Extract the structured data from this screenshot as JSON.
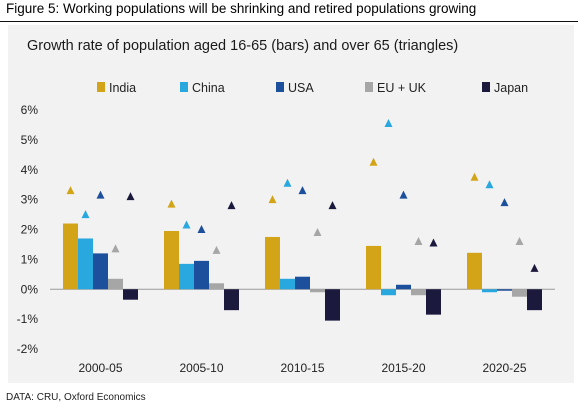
{
  "figure_title": "Figure 5: Working populations will be shrinking and retired populations growing",
  "source_note": "DATA: CRU, Oxford Economics",
  "chart_data": {
    "type": "bar",
    "title": "Growth rate of population aged 16-65 (bars) and over 65 (triangles)",
    "categories": [
      "2000-05",
      "2005-10",
      "2010-15",
      "2015-20",
      "2020-25"
    ],
    "ylim": [
      -2,
      6
    ],
    "yticks": [
      -2,
      -1,
      0,
      1,
      2,
      3,
      4,
      5,
      6
    ],
    "ytick_labels": [
      "-2%",
      "-1%",
      "0%",
      "1%",
      "2%",
      "3%",
      "4%",
      "5%",
      "6%"
    ],
    "legend_position": "top",
    "grid": false,
    "series": [
      {
        "name": "India",
        "color": "#d4a418",
        "bars": [
          2.2,
          1.95,
          1.75,
          1.45,
          1.22
        ],
        "triangles": [
          3.3,
          2.85,
          3.0,
          4.25,
          3.75
        ]
      },
      {
        "name": "China",
        "color": "#29a8e0",
        "bars": [
          1.7,
          0.85,
          0.35,
          -0.2,
          -0.1
        ],
        "triangles": [
          2.5,
          2.15,
          3.55,
          5.55,
          3.5
        ]
      },
      {
        "name": "USA",
        "color": "#1c4f9c",
        "bars": [
          1.2,
          0.95,
          0.42,
          0.15,
          -0.05
        ],
        "triangles": [
          3.15,
          2.0,
          3.3,
          3.15,
          2.9
        ]
      },
      {
        "name": "EU + UK",
        "color": "#a6a6a6",
        "bars": [
          0.35,
          0.2,
          -0.1,
          -0.2,
          -0.25
        ],
        "triangles": [
          1.35,
          1.3,
          1.9,
          1.6,
          1.6
        ]
      },
      {
        "name": "Japan",
        "color": "#1b1a3d",
        "bars": [
          -0.35,
          -0.7,
          -1.05,
          -0.85,
          -0.7
        ],
        "triangles": [
          3.1,
          2.8,
          2.8,
          1.55,
          0.7
        ]
      }
    ]
  }
}
